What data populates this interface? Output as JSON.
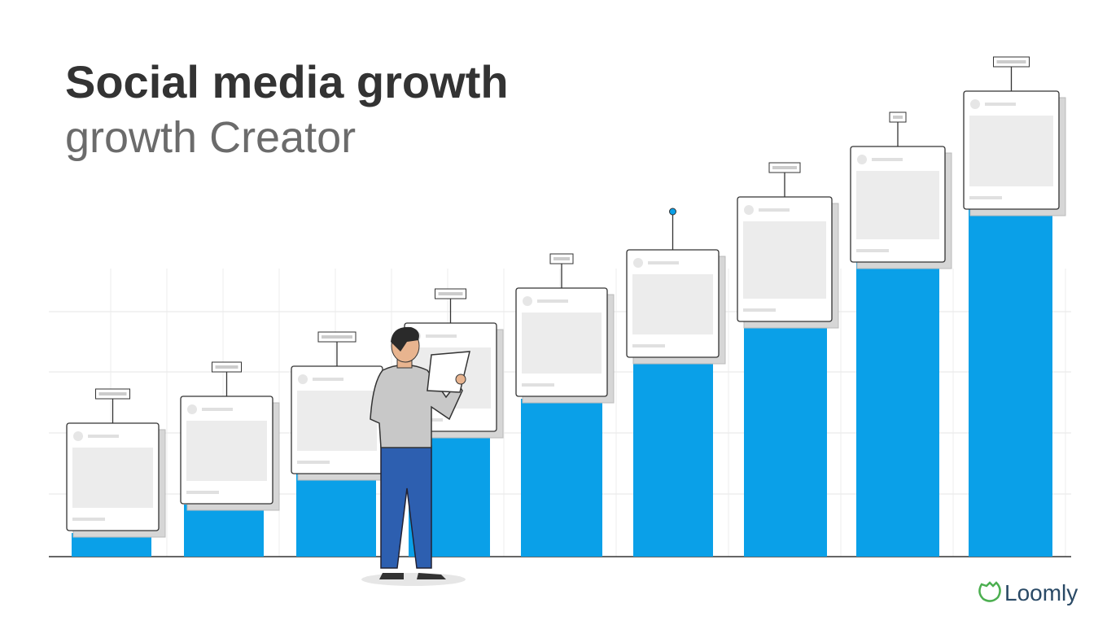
{
  "header": {
    "title": "Social media growth",
    "subtitle": "growth Creator"
  },
  "brand": {
    "name": "Loomly"
  }
}
